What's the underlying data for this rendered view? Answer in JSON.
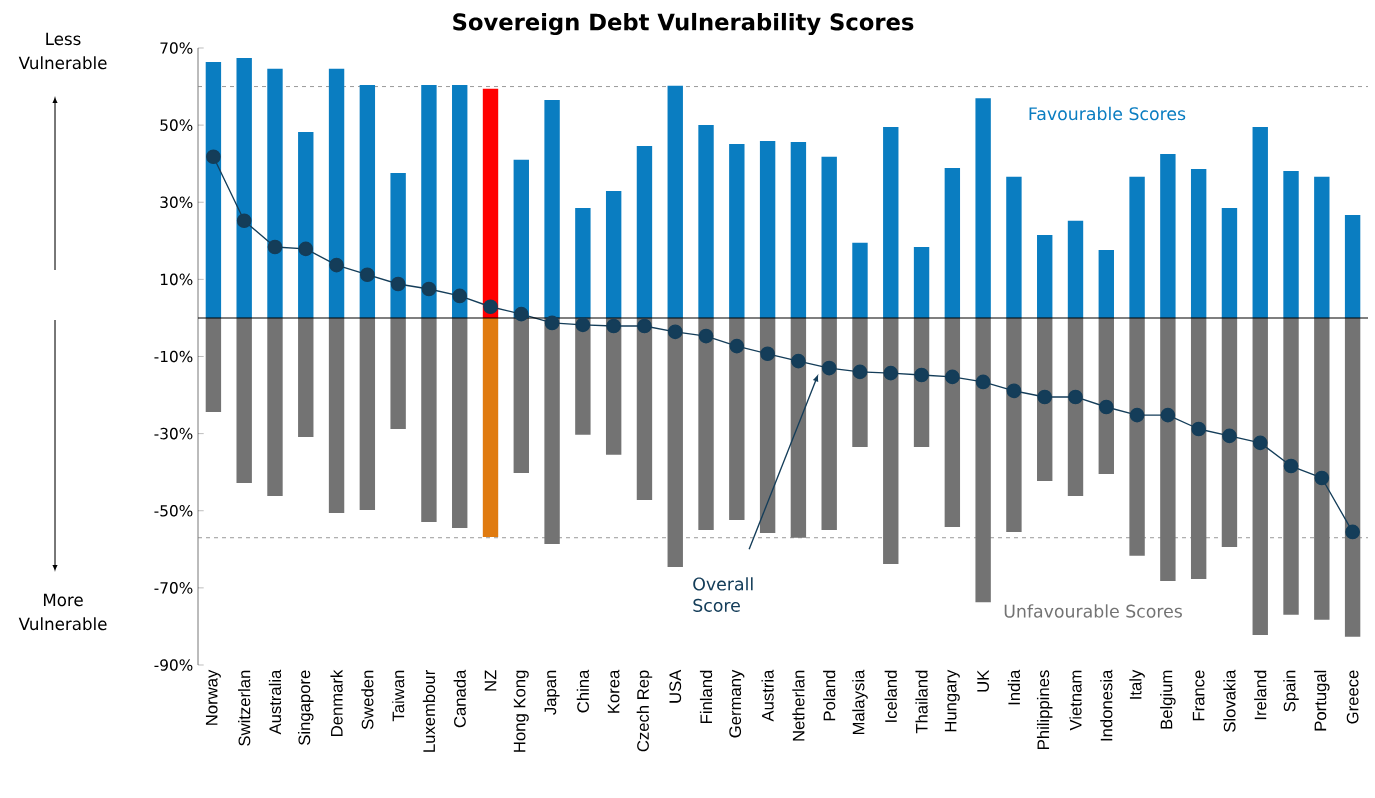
{
  "chart_data": {
    "type": "bar",
    "title": "Sovereign Debt Vulnerability Scores",
    "categories": [
      "Norway",
      "Switzerlan",
      "Australia",
      "Singapore",
      "Denmark",
      "Sweden",
      "Taiwan",
      "Luxembour",
      "Canada",
      "NZ",
      "Hong Kong",
      "Japan",
      "China",
      "Korea",
      "Czech Rep",
      "USA",
      "Finland",
      "Germany",
      "Austria",
      "Netherlan",
      "Poland",
      "Malaysia",
      "Iceland",
      "Thailand",
      "Hungary",
      "UK",
      "India",
      "Philippines",
      "Vietnam",
      "Indonesia",
      "Italy",
      "Belgium",
      "France",
      "Slovakia",
      "Ireland",
      "Spain",
      "Portugal",
      "Greece"
    ],
    "series": [
      {
        "name": "Favourable Scores",
        "color": "#0a7dc1",
        "colors": [
          "#0a7dc1",
          "#0a7dc1",
          "#0a7dc1",
          "#0a7dc1",
          "#0a7dc1",
          "#0a7dc1",
          "#0a7dc1",
          "#0a7dc1",
          "#0a7dc1",
          "#ff0000",
          "#0a7dc1",
          "#0a7dc1",
          "#0a7dc1",
          "#0a7dc1",
          "#0a7dc1",
          "#0a7dc1",
          "#0a7dc1",
          "#0a7dc1",
          "#0a7dc1",
          "#0a7dc1",
          "#0a7dc1",
          "#0a7dc1",
          "#0a7dc1",
          "#0a7dc1",
          "#0a7dc1",
          "#0a7dc1",
          "#0a7dc1",
          "#0a7dc1",
          "#0a7dc1",
          "#0a7dc1",
          "#0a7dc1",
          "#0a7dc1",
          "#0a7dc1",
          "#0a7dc1",
          "#0a7dc1",
          "#0a7dc1",
          "#0a7dc1",
          "#0a7dc1"
        ],
        "values": [
          66.4,
          67.4,
          64.6,
          48.2,
          64.6,
          60.4,
          37.6,
          60.4,
          60.4,
          59.4,
          41,
          56.5,
          28.5,
          32.9,
          44.6,
          60.2,
          50,
          45.1,
          45.9,
          45.6,
          41.8,
          19.5,
          49.5,
          18.4,
          38.9,
          57,
          36.6,
          21.5,
          25.2,
          17.6,
          36.6,
          42.5,
          38.6,
          28.5,
          49.5,
          38.1,
          36.6,
          26.7
        ]
      },
      {
        "name": "Unfavourable Scores",
        "color": "#737373",
        "colors": [
          "#737373",
          "#737373",
          "#737373",
          "#737373",
          "#737373",
          "#737373",
          "#737373",
          "#737373",
          "#737373",
          "#e07b10",
          "#737373",
          "#737373",
          "#737373",
          "#737373",
          "#737373",
          "#737373",
          "#737373",
          "#737373",
          "#737373",
          "#737373",
          "#737373",
          "#737373",
          "#737373",
          "#737373",
          "#737373",
          "#737373",
          "#737373",
          "#737373",
          "#737373",
          "#737373",
          "#737373",
          "#737373",
          "#737373",
          "#737373",
          "#737373",
          "#737373",
          "#737373",
          "#737373"
        ],
        "values": [
          -24.4,
          -42.8,
          -46.2,
          -30.9,
          -50.6,
          -49.8,
          -28.8,
          -52.9,
          -54.5,
          -56.8,
          -40.2,
          -58.6,
          -30.3,
          -35.5,
          -47.2,
          -64.6,
          -55,
          -52.4,
          -55.8,
          -57,
          -55,
          -33.5,
          -63.8,
          -33.5,
          -54.2,
          -73.7,
          -55.5,
          -42.3,
          -46.2,
          -40.5,
          -61.7,
          -68.2,
          -67.7,
          -59.4,
          -82.2,
          -77,
          -78.3,
          -82.7
        ]
      },
      {
        "name": "Overall Score",
        "type": "line",
        "color": "#143d59",
        "values": [
          41.8,
          25.2,
          18.4,
          17.9,
          13.7,
          11.2,
          8.8,
          7.5,
          5.7,
          2.9,
          1,
          -1.3,
          -1.8,
          -2.1,
          -2.1,
          -3.6,
          -4.7,
          -7.3,
          -9.3,
          -11.2,
          -13,
          -14,
          -14.3,
          -14.8,
          -15.3,
          -16.6,
          -18.9,
          -20.5,
          -20.5,
          -23.1,
          -25.2,
          -25.2,
          -28.8,
          -30.6,
          -32.4,
          -38.4,
          -41.5,
          -55.5
        ]
      }
    ],
    "marker": "circle",
    "stacked": true,
    "ylim": [
      -90,
      70
    ],
    "yticks": [
      {
        "value": 70,
        "label": "70%"
      },
      {
        "value": 50,
        "label": "50%"
      },
      {
        "value": 30,
        "label": "30%"
      },
      {
        "value": 10,
        "label": "10%"
      },
      {
        "value": -10,
        "label": "-10%"
      },
      {
        "value": -30,
        "label": "-30%"
      },
      {
        "value": -50,
        "label": "-50%"
      },
      {
        "value": -70,
        "label": "-70%"
      },
      {
        "value": -90,
        "label": "-90%"
      }
    ],
    "ref_lines": [
      {
        "axis": "y",
        "value": 60,
        "color": "#808080",
        "line_style": "dashed"
      },
      {
        "axis": "y",
        "value": -57,
        "color": "#808080",
        "line_style": "dashed"
      }
    ],
    "annotations": [
      "Less Vulnerable",
      "More Vulnerable"
    ]
  }
}
